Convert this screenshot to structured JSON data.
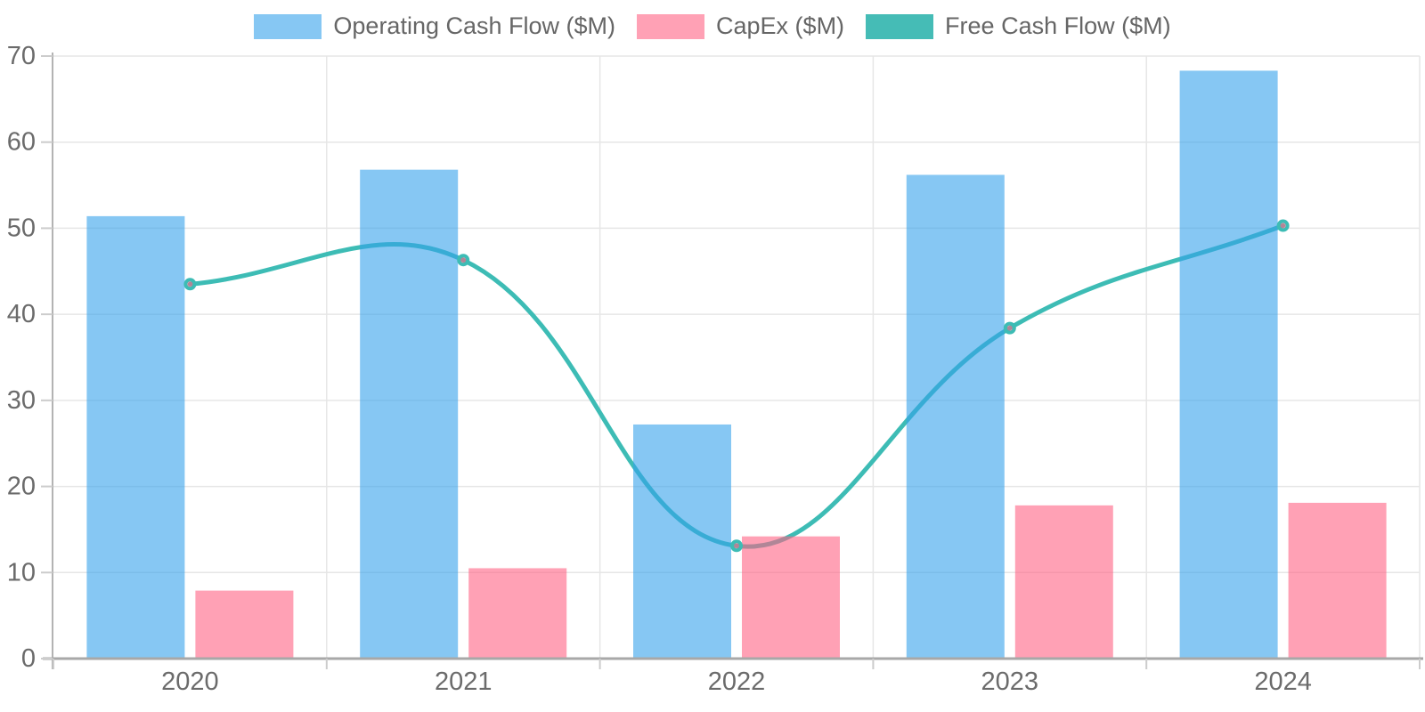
{
  "chart_data": {
    "type": "bar",
    "subtype": "grouped-bars-with-smooth-line-overlay",
    "title": "",
    "xlabel": "",
    "ylabel": "",
    "categories": [
      "2020",
      "2021",
      "2022",
      "2023",
      "2024"
    ],
    "series": [
      {
        "name": "Operating Cash Flow ($M)",
        "type": "bar",
        "color": "#36a2eb",
        "fill_opacity": 0.6,
        "legend_color": "#86c7f3",
        "values": [
          51.4,
          56.8,
          27.2,
          56.2,
          68.3
        ]
      },
      {
        "name": "CapEx ($M)",
        "type": "bar",
        "color": "#ff6384",
        "fill_opacity": 0.6,
        "legend_color": "#ffa1b5",
        "values": [
          7.9,
          10.5,
          14.2,
          17.8,
          18.1
        ]
      },
      {
        "name": "Free Cash Flow ($M)",
        "type": "line",
        "color": "#3dbcb5",
        "line_width": 5,
        "line_tension": 0.4,
        "marker_fill": "#ff6384",
        "marker_fill_opacity": 0.6,
        "legend_color": "#45bcb6",
        "values": [
          43.5,
          46.3,
          13.1,
          38.4,
          50.3
        ]
      }
    ],
    "ylim": [
      0,
      70
    ],
    "yticks": [
      0,
      10,
      20,
      30,
      40,
      50,
      60,
      70
    ],
    "grid": true,
    "legend_position": "top"
  },
  "axes": {
    "tick_label_color": "#6b6b6b",
    "tick_label_size": 29,
    "grid_color": "#e6e6e6",
    "tick_mark_color": "#cccccc",
    "axis_line_color": "#a8a8a8"
  }
}
